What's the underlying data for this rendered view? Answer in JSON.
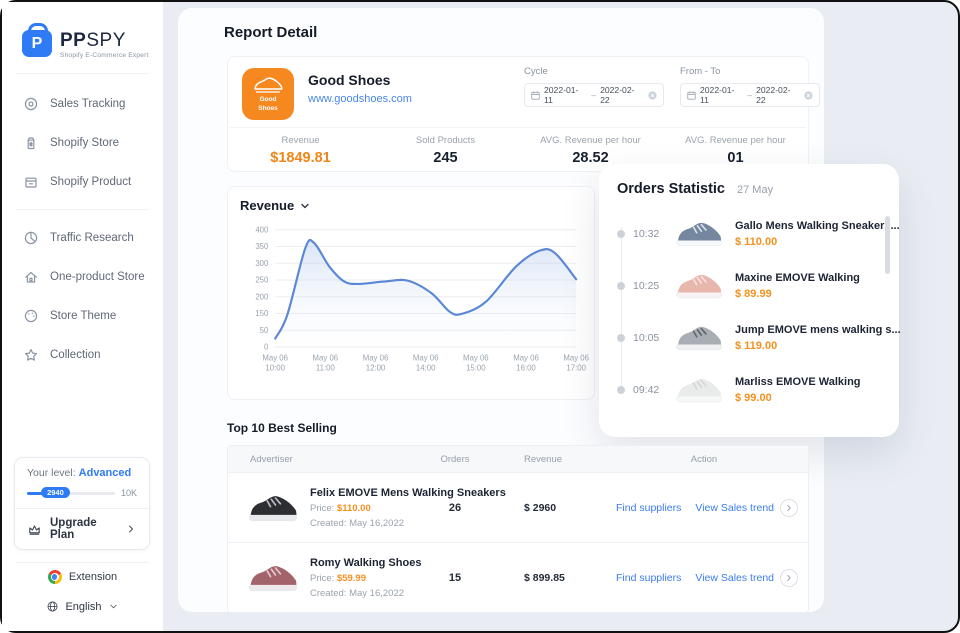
{
  "brand": {
    "name_bold": "PP",
    "name_rest": "SPY",
    "tagline": "Shopify E-Commerce Expert"
  },
  "sidebar": {
    "nav": [
      {
        "label": "Sales Tracking"
      },
      {
        "label": "Shopify Store"
      },
      {
        "label": "Shopify Product"
      },
      {
        "label": "Traffic Research"
      },
      {
        "label": "One-product Store"
      },
      {
        "label": "Store Theme"
      },
      {
        "label": "Collection"
      }
    ],
    "level": {
      "label": "Your level:",
      "value": "Advanced",
      "current": "2940",
      "max": "10K"
    },
    "upgrade_label": "Upgrade Plan",
    "extension_label": "Extension",
    "language_label": "English"
  },
  "header": {
    "title": "Report Detail"
  },
  "store_card": {
    "store": {
      "name": "Good Shoes",
      "url": "www.goodshoes.com",
      "badge_text": "Good\nShoes"
    },
    "pickers": [
      {
        "label": "Cycle",
        "start": "2022-01-11",
        "separator": "–",
        "end": "2022-02-22"
      },
      {
        "label": "From - To",
        "start": "2022-01-11",
        "separator": "–",
        "end": "2022-02-22"
      }
    ],
    "stats": [
      {
        "label": "Revenue",
        "value": "$1849.81"
      },
      {
        "label": "Sold Products",
        "value": "245"
      },
      {
        "label": "AVG. Revenue per hour",
        "value": "28.52"
      },
      {
        "label": "AVG. Revenue per hour",
        "value": "01"
      }
    ]
  },
  "chart_data": {
    "type": "line",
    "title": "Revenue",
    "x_tick_labels": [
      [
        "May 06",
        "10:00"
      ],
      [
        "May 06",
        "11:00"
      ],
      [
        "May 06",
        "12:00"
      ],
      [
        "May 06",
        "14:00"
      ],
      [
        "May 06",
        "15:00"
      ],
      [
        "May 06",
        "16:00"
      ],
      [
        "May 06",
        "17:00"
      ]
    ],
    "y_tick_labels": [
      400,
      350,
      300,
      250,
      200,
      150,
      50,
      0
    ],
    "series": [
      {
        "name": "Revenue",
        "points": [
          [
            0.0,
            25
          ],
          [
            0.04,
            140
          ],
          [
            0.1,
            345
          ],
          [
            0.13,
            360
          ],
          [
            0.18,
            290
          ],
          [
            0.23,
            245
          ],
          [
            0.28,
            238
          ],
          [
            0.36,
            245
          ],
          [
            0.44,
            248
          ],
          [
            0.52,
            210
          ],
          [
            0.58,
            155
          ],
          [
            0.62,
            148
          ],
          [
            0.7,
            185
          ],
          [
            0.8,
            290
          ],
          [
            0.88,
            338
          ],
          [
            0.93,
            330
          ],
          [
            1.0,
            252
          ]
        ]
      }
    ],
    "line_color": "#5b87d7",
    "area_top_color": "rgba(164,190,232,0.40)",
    "area_bottom_color": "rgba(236,242,250,0.04)",
    "grid": true,
    "legend": false
  },
  "orders_panel": {
    "title": "Orders Statistic",
    "date": "27 May",
    "items": [
      {
        "time": "10:32",
        "name": "Gallo Mens Walking Sneakers...",
        "price": "$ 110.00"
      },
      {
        "time": "10:25",
        "name": "Maxine EMOVE Walking",
        "price": "$ 89.99"
      },
      {
        "time": "10:05",
        "name": "Jump EMOVE mens walking s...",
        "price": "$ 119.00"
      },
      {
        "time": "09:42",
        "name": "Marliss EMOVE Walking",
        "price": "$ 99.00"
      }
    ]
  },
  "bestselling": {
    "title": "Top 10 Best Selling",
    "columns": [
      "Advertiser",
      "Orders",
      "Revenue",
      "Action"
    ],
    "rows": [
      {
        "name": "Felix EMOVE Mens Walking Sneakers",
        "price_label": "Price:",
        "price": "$110.00",
        "created_label": "Created:",
        "created": "May 16,2022",
        "orders": "26",
        "revenue": "$ 2960",
        "supplier_link": "Find suppliers",
        "trend_link": "View Sales trend"
      },
      {
        "name": "Romy Walking Shoes",
        "price_label": "Price:",
        "price": "$59.99",
        "created_label": "Created:",
        "created": "May 16,2022",
        "orders": "15",
        "revenue": "$ 899.85",
        "supplier_link": "Find suppliers",
        "trend_link": "View Sales trend"
      }
    ]
  },
  "colors": {
    "accent_orange": "#F5881F",
    "accent_blue": "#2F7BF5",
    "price_orange": "#F5901E",
    "chart_line": "#5B87D7"
  }
}
